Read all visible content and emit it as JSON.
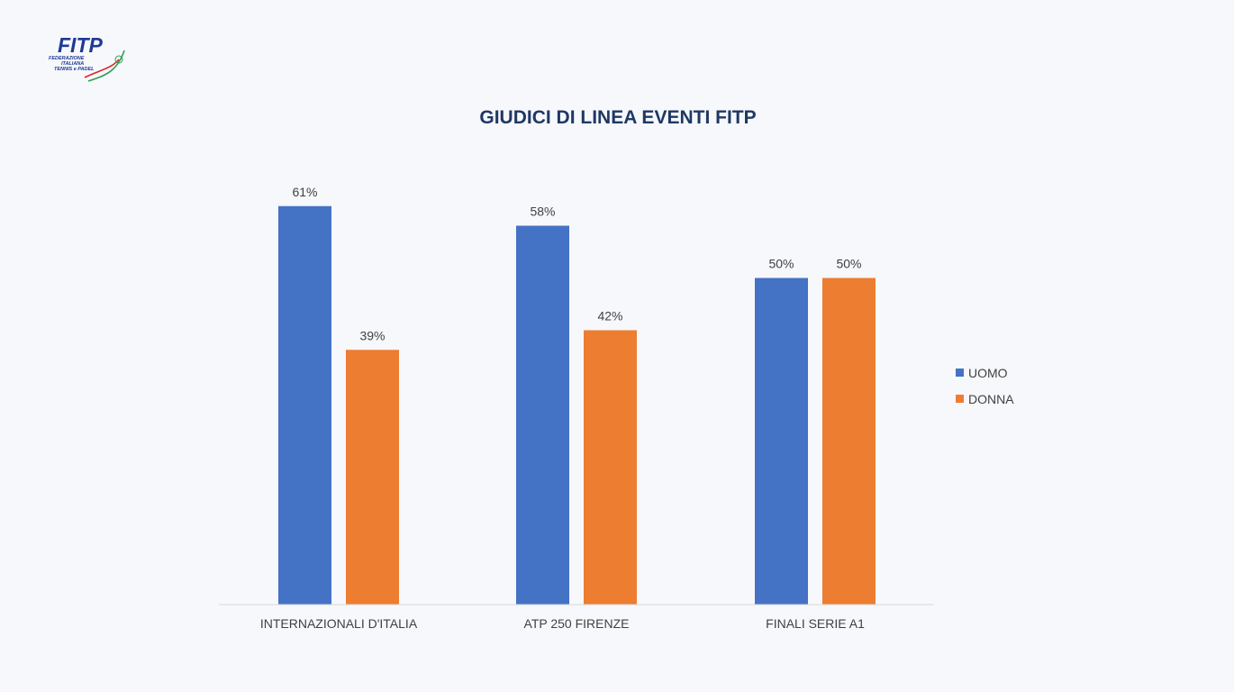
{
  "logo": {
    "wordmark": "FITP",
    "subtitle_lines": [
      "FEDERAZIONE",
      "ITALIANA",
      "TENNIS e PADEL"
    ]
  },
  "colors": {
    "title": "#1f3864",
    "uomo": "#4472c4",
    "donna": "#ed7d31",
    "axis": "#d9d9d9",
    "logo_blue": "#1f3a93",
    "logo_green": "#2e9e4f",
    "logo_red": "#d9262a"
  },
  "chart_data": {
    "type": "bar",
    "title": "GIUDICI DI LINEA EVENTI FITP",
    "categories": [
      "INTERNAZIONALI D'ITALIA",
      "ATP 250 FIRENZE",
      "FINALI SERIE A1"
    ],
    "series": [
      {
        "name": "UOMO",
        "values": [
          61,
          58,
          50
        ],
        "labels": [
          "61%",
          "58%",
          "50%"
        ]
      },
      {
        "name": "DONNA",
        "values": [
          39,
          42,
          50
        ],
        "labels": [
          "39%",
          "42%",
          "50%"
        ]
      }
    ],
    "ylim": [
      0,
      100
    ],
    "grid": false,
    "legend": "right"
  }
}
